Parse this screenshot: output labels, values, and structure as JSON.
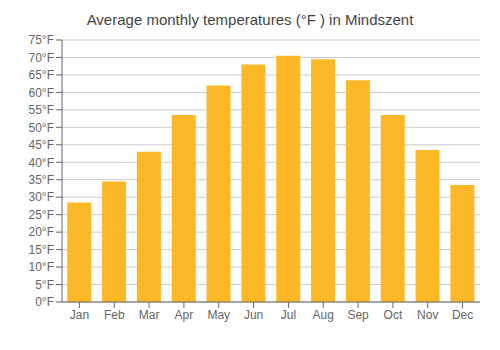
{
  "chart_data": {
    "type": "bar",
    "title": "Average monthly temperatures (°F ) in Mindszent",
    "categories": [
      "Jan",
      "Feb",
      "Mar",
      "Apr",
      "May",
      "Jun",
      "Jul",
      "Aug",
      "Sep",
      "Oct",
      "Nov",
      "Dec"
    ],
    "values": [
      28.5,
      34.5,
      43.0,
      53.5,
      62.0,
      68.0,
      70.5,
      69.5,
      63.5,
      53.5,
      43.5,
      33.5
    ],
    "color": "#FDB827",
    "ylim": [
      0,
      75
    ],
    "yticks": [
      {
        "value": 0,
        "label": "0°F"
      },
      {
        "value": 5,
        "label": "5°F"
      },
      {
        "value": 10,
        "label": "10°F"
      },
      {
        "value": 15,
        "label": "15°F"
      },
      {
        "value": 20,
        "label": "20°F"
      },
      {
        "value": 25,
        "label": "25°F"
      },
      {
        "value": 30,
        "label": "30°F"
      },
      {
        "value": 35,
        "label": "35°F"
      },
      {
        "value": 40,
        "label": "40°F"
      },
      {
        "value": 45,
        "label": "45°F"
      },
      {
        "value": 50,
        "label": "50°F"
      },
      {
        "value": 55,
        "label": "55°F"
      },
      {
        "value": 60,
        "label": "60°F"
      },
      {
        "value": 65,
        "label": "65°F"
      },
      {
        "value": 70,
        "label": "70°F"
      },
      {
        "value": 75,
        "label": "75°F"
      }
    ],
    "grid": true
  }
}
